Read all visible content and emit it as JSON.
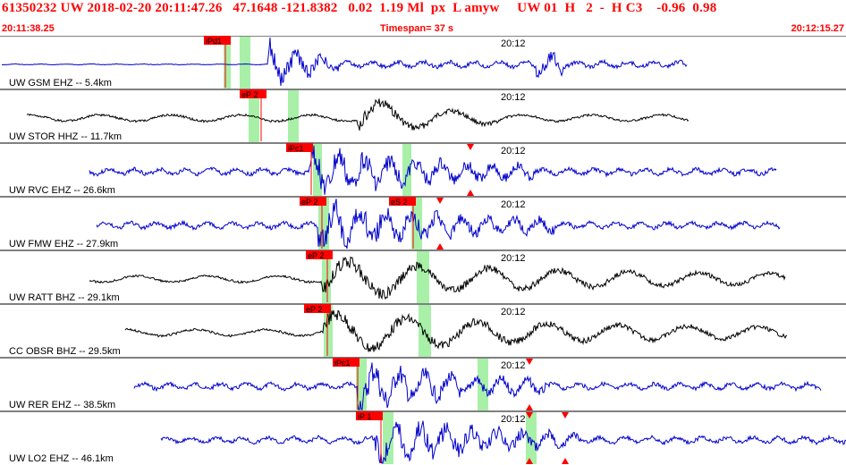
{
  "header": {
    "title": "61350232 UW 2018-02-20 20:11:47.26   47.1648 -121.8382   0.02  1.19 Ml  px  L amyw     UW 01  H   2  -  H C3    -0.96  0.98",
    "start_time": "20:11:38.25",
    "timespan": "Timespan=  37 s",
    "end_time": "20:12:15.27"
  },
  "colors": {
    "accent": "#ff0000",
    "trace_blue": "#0000cc",
    "trace_black": "#000000",
    "window_green": "#a8f0a8",
    "pick_red": "#ff0000"
  },
  "time_mark": "20:12",
  "traces": [
    {
      "label": "UW GSM EHZ -- 5.4km",
      "color": "blue",
      "picks": [
        {
          "text": "iPd1",
          "t": 0.5
        }
      ],
      "arrivals": []
    },
    {
      "label": "UW STOR HHZ -- 11.7km",
      "color": "black",
      "picks": [
        {
          "text": "eP 2",
          "t": 0.6
        }
      ],
      "arrivals": []
    },
    {
      "label": "UW RVC EHZ -- 26.6km",
      "color": "blue",
      "picks": [
        {
          "text": "iPc1",
          "t": 0.5
        }
      ],
      "arrivals": [
        {
          "t": 0.5
        }
      ]
    },
    {
      "label": "UW FMW EHZ -- 27.9km",
      "color": "blue",
      "picks": [
        {
          "text": "eP 2",
          "t": 0.5
        },
        {
          "text": "eS 2",
          "t": 0.5
        }
      ],
      "arrivals": [
        {
          "t": 0.5
        }
      ]
    },
    {
      "label": "UW RATT BHZ -- 29.1km",
      "color": "black",
      "picks": [
        {
          "text": "eP 2",
          "t": 0.5
        }
      ],
      "arrivals": []
    },
    {
      "label": "CC OBSR BHZ -- 29.5km",
      "color": "black",
      "picks": [
        {
          "text": "eP 2",
          "t": 0.5
        }
      ],
      "arrivals": []
    },
    {
      "label": "UW RER EHZ -- 38.5km",
      "color": "blue",
      "picks": [
        {
          "text": "iPc1",
          "t": 0.5
        }
      ],
      "arrivals": [
        {
          "t": 0.5
        }
      ]
    },
    {
      "label": "UW LO2 EHZ -- 46.1km",
      "color": "blue",
      "picks": [
        {
          "text": "iP 1",
          "t": 0.5
        }
      ],
      "arrivals": [
        {
          "t": 0.5
        },
        {
          "t": 0.5
        }
      ]
    }
  ]
}
